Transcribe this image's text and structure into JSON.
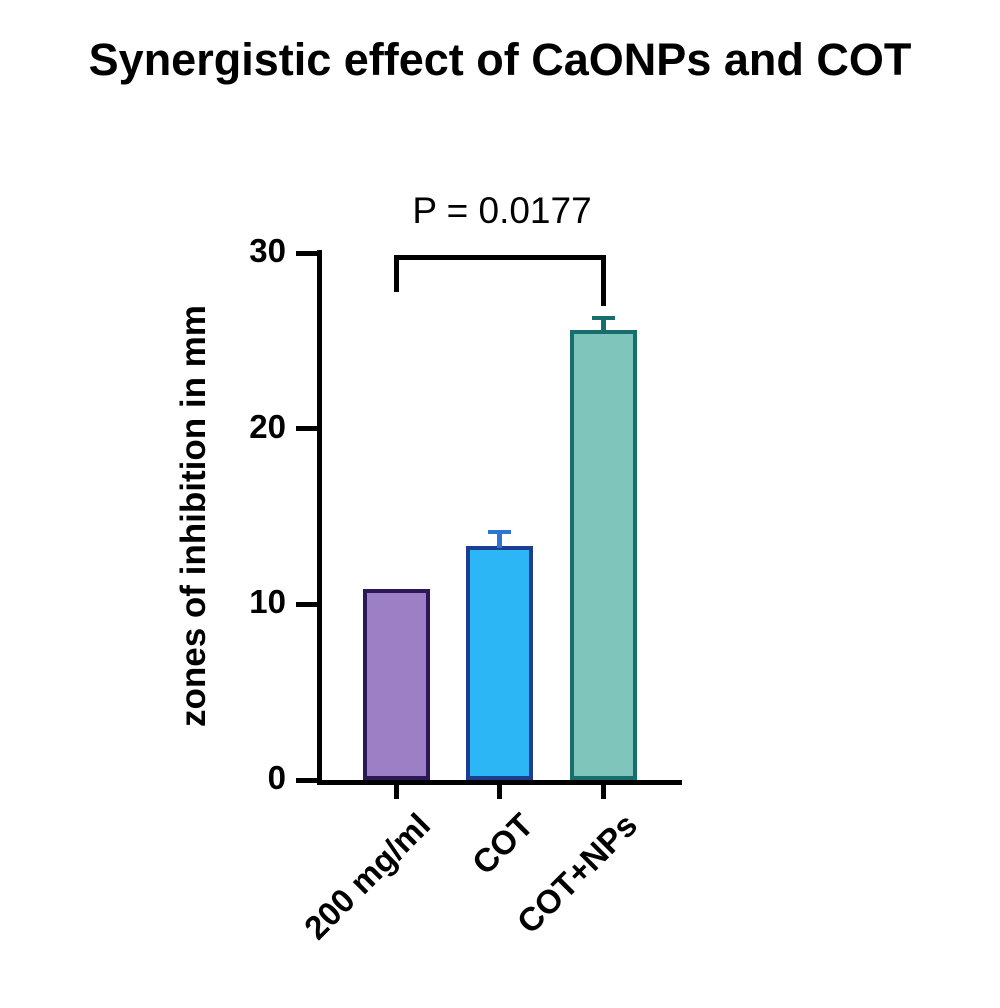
{
  "title": "Synergistic effect of CaONPs and COT",
  "chart_data": {
    "type": "bar",
    "title": "Synergistic effect of CaONPs and COT",
    "categories": [
      "200 mg/ml",
      "COT",
      "COT+NPs"
    ],
    "values": [
      10.9,
      13.3,
      25.6
    ],
    "errors_plus": [
      0,
      0.8,
      0.7
    ],
    "bar_colors": [
      "#9c7fc5",
      "#2db6f5",
      "#80c5bc"
    ],
    "bar_borders": [
      "#2b1957",
      "#1c3e91",
      "#166f6c"
    ],
    "error_colors": [
      "#2b1957",
      "#2a76d2",
      "#166f6c"
    ],
    "xlabel": "",
    "ylabel": "zones of inhibition in mm",
    "ylim": [
      0,
      30
    ],
    "yticks": [
      0,
      10,
      20,
      30
    ],
    "grid": false,
    "legend": "none",
    "significance": {
      "label": "P = 0.0177",
      "from_category": "200 mg/ml",
      "to_category": "COT+NPs"
    }
  }
}
